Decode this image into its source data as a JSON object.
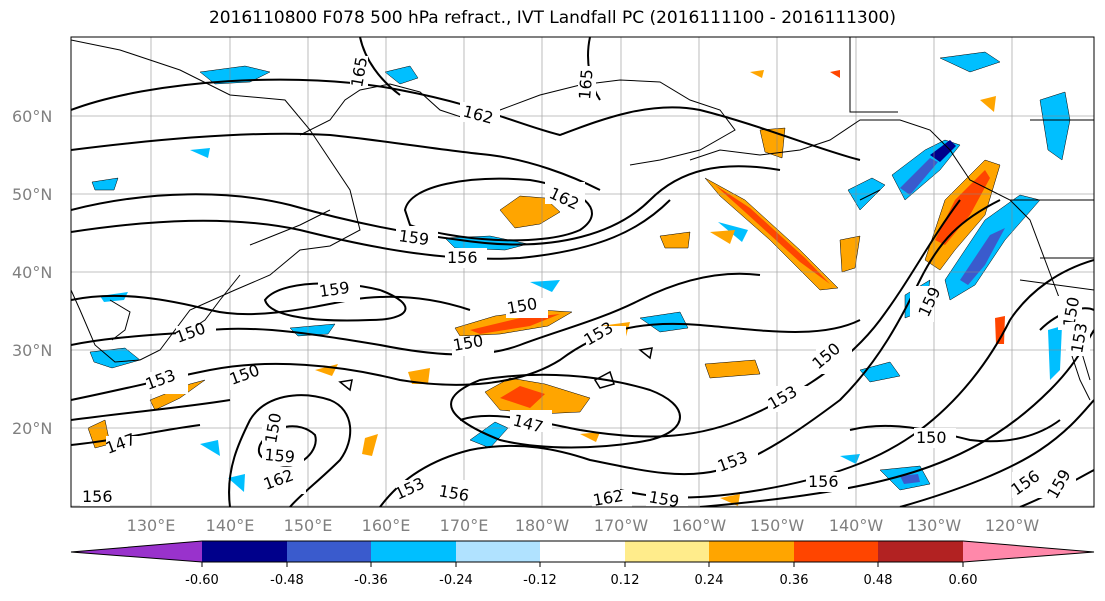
{
  "title": "2016110800 F078 500 hPa refract., IVT Landfall PC (2016111100 - 2016111300)",
  "lat_labels": [
    "60°N",
    "50°N",
    "40°N",
    "30°N",
    "20°N"
  ],
  "lon_labels": [
    "130°E",
    "140°E",
    "150°E",
    "160°E",
    "170°E",
    "180°W",
    "170°W",
    "160°W",
    "150°W",
    "140°W",
    "130°W",
    "120°W"
  ],
  "colorbar": {
    "colors": [
      "#9932cc",
      "#00008b",
      "#3a5bcd",
      "#00bfff",
      "#b0e2ff",
      "#ffffff",
      "#ffec8b",
      "#ffa500",
      "#ff4500",
      "#b22222",
      "#ff88aa"
    ],
    "tick_labels": [
      "-0.60",
      "-0.48",
      "-0.36",
      "-0.24",
      "-0.12",
      "0.12",
      "0.24",
      "0.36",
      "0.48",
      "0.60"
    ]
  },
  "contour_labels": [
    "165",
    "165",
    "162",
    "162",
    "159",
    "156",
    "159",
    "150",
    "150",
    "150",
    "150",
    "153",
    "153",
    "150",
    "147",
    "147",
    "150",
    "153",
    "153",
    "159",
    "150",
    "153",
    "150",
    "156",
    "156",
    "159",
    "159",
    "162",
    "153",
    "156",
    "162",
    "159",
    "156"
  ]
}
